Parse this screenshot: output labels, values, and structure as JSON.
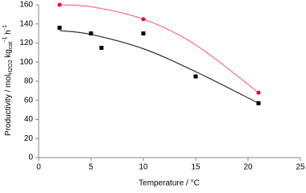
{
  "chart_data": {
    "type": "scatter",
    "x_label": "Temperature / °C",
    "y_label_parts": [
      "Productivity / mol",
      "H2O2",
      " kg",
      "cat",
      "-1",
      " h",
      "-1"
    ],
    "xlim": [
      0,
      25
    ],
    "xticks": [
      0,
      5,
      10,
      15,
      20,
      25
    ],
    "ylim": [
      0,
      160
    ],
    "yticks": [
      0,
      20,
      40,
      60,
      80,
      100,
      120,
      140,
      160
    ],
    "grid": false,
    "series": [
      {
        "color": "#000000",
        "marker": "square",
        "x": [
          2,
          5,
          6,
          10,
          15,
          21
        ],
        "values": [
          136,
          130,
          115,
          130,
          85,
          57
        ]
      },
      {
        "color": "#e8003a",
        "marker": "circle",
        "x": [
          2,
          10,
          21
        ],
        "values": [
          160,
          145,
          68
        ]
      }
    ],
    "trendlines": [
      {
        "color": "#333333",
        "x": [
          2,
          5,
          10,
          15,
          21
        ],
        "values": [
          133,
          129,
          114,
          90,
          57
        ]
      },
      {
        "color": "#ff6f8f",
        "x": [
          2,
          5,
          10,
          15,
          21
        ],
        "values": [
          160,
          158,
          145,
          118,
          68
        ]
      }
    ]
  }
}
